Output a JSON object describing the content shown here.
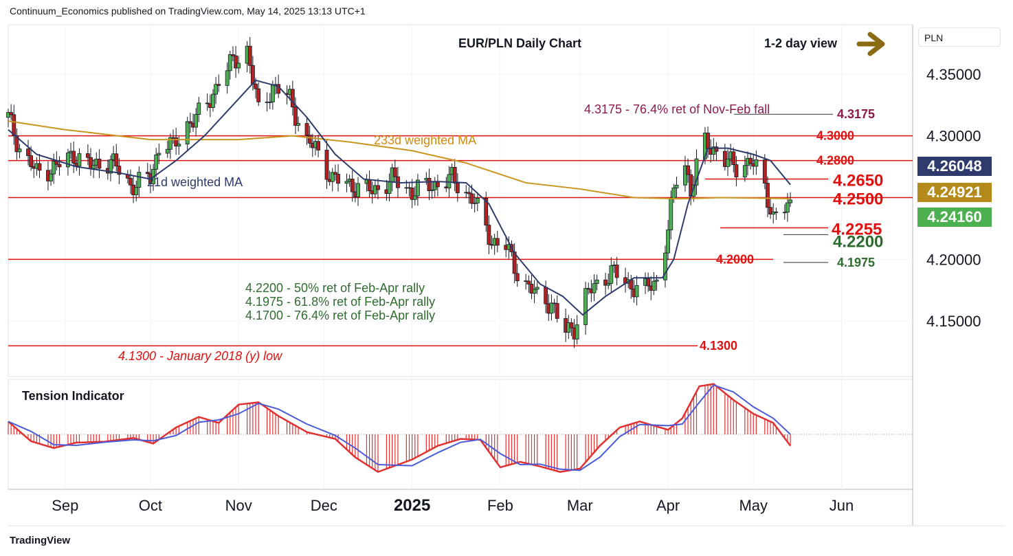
{
  "header": {
    "published": "Continuum_Economics published on TradingView.com, May 14, 2025 13:13 UTC+1",
    "chart_title": "EUR/PLN Daily Chart",
    "view_label": "1-2 day view",
    "currency_label": "PLN"
  },
  "footer": {
    "logo_text": "TradingView"
  },
  "tags": [
    {
      "value": "4.26048",
      "color": "#2d3a6b"
    },
    {
      "value": "4.24921",
      "color": "#b48a1a"
    },
    {
      "value": "4.24160",
      "color": "#4caf50"
    }
  ],
  "chart_data": {
    "type": "candlestick",
    "title": "EUR/PLN Daily Chart",
    "ylim": [
      4.105,
      4.39
    ],
    "y_ticks": [
      "4.35000",
      "4.30000",
      "4.20000",
      "4.15000"
    ],
    "y_tick_values": [
      4.35,
      4.3,
      4.2,
      4.15
    ],
    "x_ticks": [
      "Sep",
      "Oct",
      "Nov",
      "Dec",
      "2025",
      "Feb",
      "Mar",
      "Apr",
      "May",
      "Jun"
    ],
    "x_tick_dates": [
      "2024-09-01",
      "2024-10-01",
      "2024-11-01",
      "2024-12-01",
      "2025-01-01",
      "2025-02-01",
      "2025-03-01",
      "2025-04-01",
      "2025-05-01",
      "2025-06-01"
    ],
    "x_range": [
      "2024-08-12",
      "2025-06-26"
    ],
    "close_path": {
      "dates": [
        "2024-08-12",
        "2024-08-16",
        "2024-08-22",
        "2024-08-29",
        "2024-09-04",
        "2024-09-10",
        "2024-09-17",
        "2024-09-24",
        "2024-10-01",
        "2024-10-05",
        "2024-10-09",
        "2024-10-14",
        "2024-10-20",
        "2024-10-25",
        "2024-10-30",
        "2024-11-04",
        "2024-11-08",
        "2024-11-13",
        "2024-11-19",
        "2024-11-25",
        "2024-11-28",
        "2024-12-04",
        "2024-12-11",
        "2024-12-18",
        "2024-12-25",
        "2025-01-01",
        "2025-01-08",
        "2025-01-15",
        "2025-01-22",
        "2025-01-29",
        "2025-02-03",
        "2025-02-08",
        "2025-02-14",
        "2025-02-19",
        "2025-02-23",
        "2025-02-27",
        "2025-03-03",
        "2025-03-07",
        "2025-03-12",
        "2025-03-18",
        "2025-03-24",
        "2025-03-29",
        "2025-04-02",
        "2025-04-06",
        "2025-04-09",
        "2025-04-13",
        "2025-04-17",
        "2025-04-21",
        "2025-04-25",
        "2025-04-30",
        "2025-05-04",
        "2025-05-08",
        "2025-05-11",
        "2025-05-14"
      ],
      "values": [
        4.315,
        4.29,
        4.27,
        4.275,
        4.285,
        4.275,
        4.28,
        4.26,
        4.265,
        4.3,
        4.29,
        4.31,
        4.32,
        4.345,
        4.36,
        4.37,
        4.32,
        4.34,
        4.33,
        4.295,
        4.29,
        4.265,
        4.26,
        4.255,
        4.265,
        4.255,
        4.26,
        4.265,
        4.25,
        4.215,
        4.21,
        4.185,
        4.17,
        4.165,
        4.14,
        4.145,
        4.17,
        4.18,
        4.19,
        4.18,
        4.175,
        4.185,
        4.24,
        4.29,
        4.255,
        4.295,
        4.29,
        4.28,
        4.275,
        4.28,
        4.265,
        4.235,
        4.24,
        4.2416
      ]
    },
    "ma21": {
      "name": "21d weighted MA",
      "dates": [
        "2024-08-12",
        "2024-08-22",
        "2024-09-05",
        "2024-09-20",
        "2024-10-01",
        "2024-10-10",
        "2024-10-20",
        "2024-10-30",
        "2024-11-07",
        "2024-11-15",
        "2024-11-25",
        "2024-12-05",
        "2024-12-15",
        "2024-12-28",
        "2025-01-10",
        "2025-01-20",
        "2025-01-28",
        "2025-02-06",
        "2025-02-15",
        "2025-02-23",
        "2025-03-02",
        "2025-03-10",
        "2025-03-20",
        "2025-03-30",
        "2025-04-03",
        "2025-04-08",
        "2025-04-15",
        "2025-04-22",
        "2025-05-01",
        "2025-05-07",
        "2025-05-14"
      ],
      "values": [
        4.305,
        4.285,
        4.275,
        4.27,
        4.265,
        4.28,
        4.3,
        4.325,
        4.345,
        4.34,
        4.315,
        4.285,
        4.265,
        4.262,
        4.263,
        4.262,
        4.245,
        4.205,
        4.18,
        4.17,
        4.155,
        4.17,
        4.185,
        4.185,
        4.2,
        4.245,
        4.29,
        4.29,
        4.285,
        4.28,
        4.26048
      ]
    },
    "ma233": {
      "name": "233d weighted MA",
      "dates": [
        "2024-08-12",
        "2024-09-01",
        "2024-10-01",
        "2024-11-01",
        "2024-11-20",
        "2024-12-10",
        "2025-01-01",
        "2025-01-20",
        "2025-02-10",
        "2025-03-01",
        "2025-03-20",
        "2025-04-05",
        "2025-04-20",
        "2025-05-14"
      ],
      "values": [
        4.312,
        4.305,
        4.297,
        4.297,
        4.3,
        4.295,
        4.288,
        4.278,
        4.262,
        4.257,
        4.25,
        4.249,
        4.25,
        4.24921
      ]
    },
    "levels": [
      {
        "value": 4.3175,
        "label": "4.3175",
        "color": "#8b1a4a"
      },
      {
        "value": 4.3,
        "label": "4.3000",
        "color": "#e01010"
      },
      {
        "value": 4.28,
        "label": "4.2800",
        "color": "#e01010"
      },
      {
        "value": 4.265,
        "label": "4.2650",
        "color": "#e01010"
      },
      {
        "value": 4.25,
        "label": "4.2500",
        "color": "#e01010"
      },
      {
        "value": 4.2255,
        "label": "4.2255",
        "color": "#e01010"
      },
      {
        "value": 4.22,
        "label": "4.2200",
        "color": "#2e6b2e"
      },
      {
        "value": 4.2,
        "label": "4.2000",
        "color": "#e01010"
      },
      {
        "value": 4.1975,
        "label": "4.1975",
        "color": "#2e6b2e"
      },
      {
        "value": 4.13,
        "label": "4.1300",
        "color": "#e01010"
      }
    ],
    "annotations": [
      {
        "text": "4.3175 - 76.4% ret of Nov-Feb fall",
        "color": "#8b1a4a"
      },
      {
        "text": "233d weighted MA",
        "color": "#d28a10"
      },
      {
        "text": "21d weighted MA",
        "color": "#2d3a6b"
      },
      {
        "text": "4.2200 - 50% ret of Feb-Apr rally",
        "color": "#2e6b2e"
      },
      {
        "text": "4.1975 - 61.8% ret of Feb-Apr rally",
        "color": "#2e6b2e"
      },
      {
        "text": "4.1700 - 76.4% ret of Feb-Apr rally",
        "color": "#2e6b2e"
      },
      {
        "text": "4.1300 - January 2018 (y) low",
        "color": "#e01010"
      }
    ],
    "tension_indicator": {
      "title": "Tension Indicator",
      "ylim": [
        -1.2,
        1.2
      ],
      "dates": [
        "2024-08-12",
        "2024-08-20",
        "2024-08-28",
        "2024-09-05",
        "2024-09-15",
        "2024-09-25",
        "2024-10-02",
        "2024-10-10",
        "2024-10-18",
        "2024-10-25",
        "2024-11-01",
        "2024-11-08",
        "2024-11-15",
        "2024-11-25",
        "2024-12-05",
        "2024-12-12",
        "2024-12-20",
        "2025-01-01",
        "2025-01-10",
        "2025-01-18",
        "2025-01-25",
        "2025-02-01",
        "2025-02-08",
        "2025-02-15",
        "2025-02-22",
        "2025-03-01",
        "2025-03-08",
        "2025-03-15",
        "2025-03-22",
        "2025-04-01",
        "2025-04-06",
        "2025-04-12",
        "2025-04-17",
        "2025-04-24",
        "2025-05-01",
        "2025-05-08",
        "2025-05-14"
      ],
      "values": [
        0.28,
        -0.15,
        -0.3,
        -0.18,
        -0.16,
        -0.08,
        -0.2,
        0.15,
        0.38,
        0.25,
        0.65,
        0.7,
        0.4,
        0.05,
        -0.1,
        -0.5,
        -0.82,
        -0.55,
        -0.25,
        -0.1,
        -0.12,
        -0.72,
        -0.6,
        -0.7,
        -0.82,
        -0.75,
        -0.25,
        0.15,
        0.28,
        0.1,
        0.35,
        1.05,
        1.1,
        0.75,
        0.45,
        0.25,
        -0.25
      ]
    }
  }
}
